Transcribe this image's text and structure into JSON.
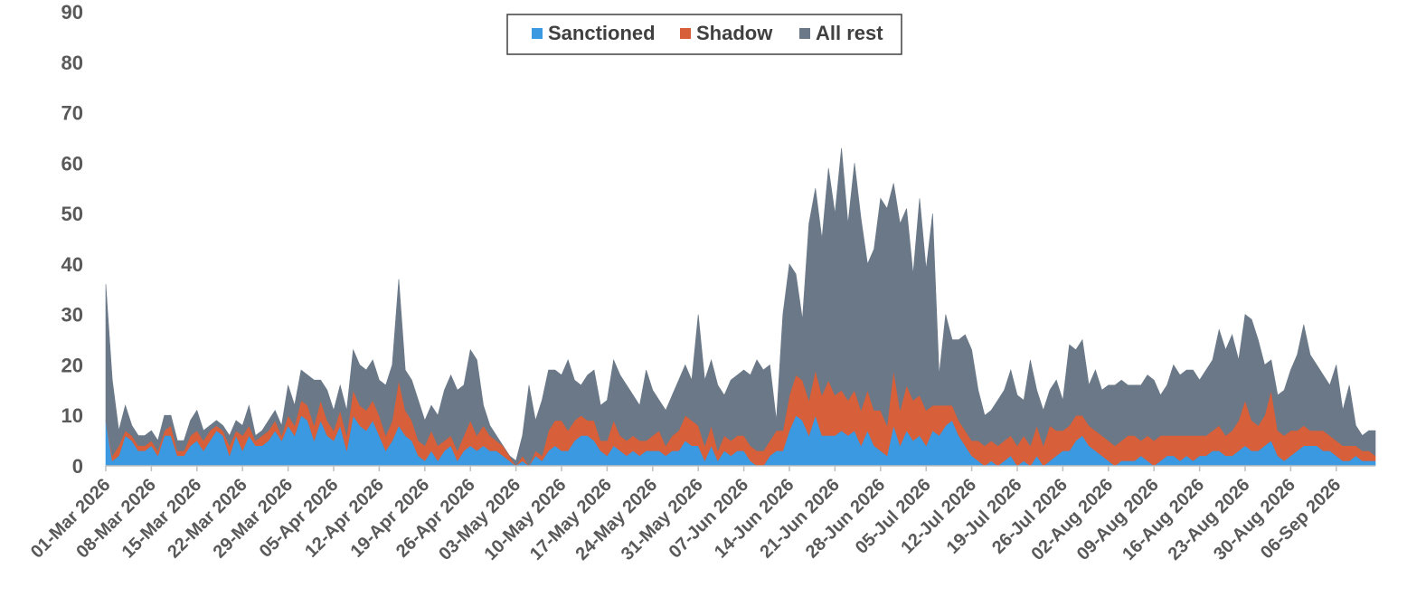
{
  "chart_data": {
    "type": "area",
    "stacked": true,
    "x_start": "01-Mar 2026",
    "x_end": "07-Sep 2026",
    "ylim": [
      0,
      90
    ],
    "yticks": [
      0,
      10,
      20,
      30,
      40,
      50,
      60,
      70,
      80,
      90
    ],
    "xticks": [
      "01-Mar 2026",
      "08-Mar 2026",
      "15-Mar 2026",
      "22-Mar 2026",
      "29-Mar 2026",
      "05-Apr 2026",
      "12-Apr 2026",
      "19-Apr 2026",
      "26-Apr 2026",
      "03-May 2026",
      "10-May 2026",
      "17-May 2026",
      "24-May 2026",
      "31-May 2026",
      "07-Jun 2026",
      "14-Jun 2026",
      "21-Jun 2026",
      "28-Jun 2026",
      "05-Jul 2026",
      "12-Jul 2026",
      "19-Jul 2026",
      "26-Jul 2026",
      "02-Aug 2026",
      "09-Aug 2026",
      "16-Aug 2026",
      "23-Aug 2026",
      "30-Aug 2026",
      "06-Sep 2026"
    ],
    "legend_position": "top-center",
    "grid": false,
    "series": [
      {
        "name": "Sanctioned",
        "color": "#3a99e0",
        "values": [
          9,
          1,
          2,
          6,
          5,
          3,
          3,
          4,
          2,
          6,
          6,
          2,
          2,
          4,
          5,
          3,
          5,
          7,
          6,
          2,
          6,
          3,
          6,
          4,
          4,
          5,
          7,
          5,
          8,
          6,
          10,
          9,
          5,
          9,
          6,
          5,
          8,
          3,
          10,
          8,
          7,
          9,
          6,
          3,
          5,
          8,
          6,
          5,
          2,
          1,
          3,
          1,
          3,
          4,
          1,
          3,
          4,
          3,
          4,
          3,
          3,
          2,
          1,
          0,
          1,
          0,
          2,
          1,
          3,
          4,
          3,
          3,
          5,
          6,
          6,
          5,
          3,
          2,
          4,
          3,
          2,
          3,
          2,
          3,
          3,
          3,
          2,
          3,
          3,
          5,
          4,
          4,
          1,
          4,
          1,
          3,
          2,
          3,
          3,
          1,
          0,
          0,
          2,
          3,
          3,
          7,
          10,
          9,
          6,
          10,
          6,
          6,
          6,
          7,
          6,
          7,
          4,
          7,
          4,
          3,
          2,
          8,
          4,
          7,
          5,
          6,
          4,
          7,
          6,
          8,
          9,
          6,
          4,
          2,
          1,
          0,
          1,
          0,
          1,
          2,
          0,
          1,
          0,
          2,
          0,
          1,
          2,
          3,
          3,
          5,
          6,
          4,
          3,
          2,
          1,
          0,
          1,
          1,
          1,
          2,
          1,
          0,
          1,
          2,
          2,
          1,
          2,
          1,
          2,
          2,
          3,
          3,
          2,
          2,
          3,
          4,
          3,
          3,
          4,
          5,
          2,
          1,
          2,
          3,
          4,
          4,
          4,
          3,
          3,
          2,
          1,
          1,
          2,
          1,
          1,
          1
        ]
      },
      {
        "name": "Shadow",
        "color": "#d75f3a",
        "values": [
          0,
          1,
          2,
          1,
          1,
          1,
          1,
          1,
          1,
          1,
          2,
          1,
          1,
          2,
          2,
          2,
          2,
          1,
          1,
          2,
          1,
          3,
          2,
          1,
          2,
          2,
          2,
          1,
          2,
          2,
          3,
          3,
          3,
          4,
          3,
          2,
          3,
          3,
          5,
          4,
          4,
          4,
          4,
          3,
          4,
          9,
          5,
          4,
          3,
          3,
          4,
          3,
          2,
          2,
          2,
          3,
          5,
          3,
          4,
          3,
          2,
          2,
          1,
          0,
          1,
          0,
          1,
          1,
          4,
          5,
          6,
          4,
          4,
          4,
          3,
          4,
          2,
          3,
          5,
          3,
          3,
          3,
          3,
          2,
          3,
          4,
          2,
          3,
          4,
          5,
          5,
          4,
          3,
          4,
          2,
          3,
          3,
          3,
          3,
          3,
          3,
          3,
          3,
          4,
          4,
          7,
          8,
          8,
          7,
          9,
          8,
          11,
          8,
          8,
          7,
          8,
          7,
          8,
          7,
          8,
          6,
          11,
          7,
          9,
          8,
          8,
          7,
          5,
          6,
          4,
          3,
          3,
          3,
          3,
          4,
          4,
          4,
          4,
          4,
          4,
          4,
          5,
          4,
          6,
          4,
          7,
          5,
          4,
          5,
          5,
          4,
          4,
          4,
          4,
          4,
          4,
          4,
          5,
          5,
          3,
          5,
          5,
          5,
          4,
          4,
          5,
          4,
          5,
          4,
          4,
          4,
          5,
          4,
          5,
          6,
          9,
          6,
          5,
          6,
          10,
          5,
          5,
          5,
          4,
          4,
          3,
          3,
          4,
          3,
          3,
          3,
          3,
          2,
          2,
          2,
          1
        ]
      },
      {
        "name": "All rest",
        "color": "#6a7888",
        "values": [
          27,
          15,
          3,
          5,
          2,
          2,
          2,
          2,
          2,
          3,
          2,
          2,
          2,
          3,
          4,
          2,
          1,
          1,
          1,
          2,
          2,
          2,
          4,
          1,
          1,
          2,
          2,
          2,
          6,
          4,
          6,
          6,
          9,
          4,
          6,
          4,
          5,
          5,
          8,
          8,
          8,
          8,
          7,
          10,
          11,
          20,
          8,
          8,
          8,
          5,
          5,
          6,
          10,
          12,
          12,
          10,
          14,
          15,
          4,
          2,
          1,
          0,
          0,
          1,
          4,
          16,
          6,
          11,
          12,
          10,
          9,
          14,
          8,
          6,
          9,
          10,
          7,
          8,
          12,
          12,
          11,
          8,
          7,
          14,
          9,
          6,
          7,
          8,
          10,
          10,
          8,
          22,
          13,
          13,
          13,
          8,
          12,
          12,
          13,
          14,
          18,
          16,
          15,
          2,
          23,
          26,
          20,
          12,
          35,
          36,
          31,
          42,
          36,
          48,
          35,
          45,
          38,
          25,
          32,
          42,
          43,
          37,
          37,
          35,
          25,
          39,
          28,
          38,
          6,
          18,
          13,
          16,
          19,
          18,
          10,
          6,
          6,
          9,
          10,
          13,
          10,
          7,
          17,
          7,
          7,
          7,
          10,
          6,
          16,
          13,
          15,
          8,
          12,
          9,
          11,
          12,
          12,
          10,
          10,
          11,
          12,
          12,
          8,
          10,
          14,
          12,
          13,
          13,
          11,
          13,
          14,
          19,
          17,
          19,
          12,
          17,
          20,
          17,
          10,
          6,
          7,
          9,
          12,
          15,
          20,
          15,
          13,
          11,
          10,
          15,
          7,
          12,
          4,
          3,
          4,
          5
        ]
      }
    ]
  }
}
